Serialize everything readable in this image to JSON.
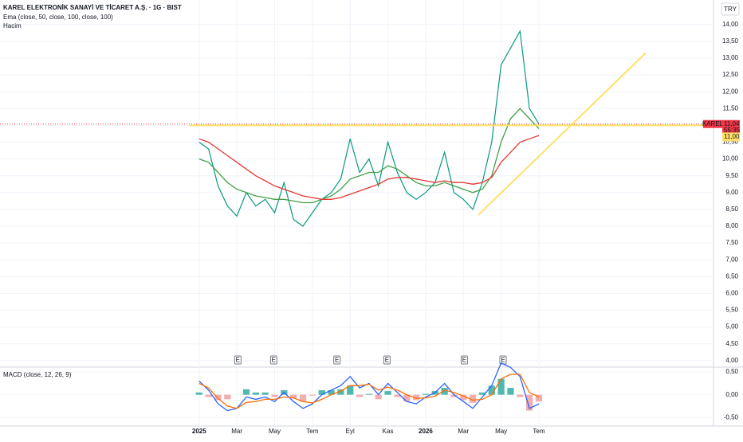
{
  "header": {
    "title": "KAREL ELEKTRONİK SANAYİ VE TİCARET A.Ş. · 1G · BIST",
    "indicator": "Ema (close, 50, close, 100, close, 100)",
    "volume_label": "Hacim",
    "currency": "TRY"
  },
  "chart_data": [
    {
      "type": "line",
      "xlim": [
        -21.1,
        54.5
      ],
      "ylim": [
        3.83,
        14.73
      ],
      "x": [
        0,
        1,
        2,
        3,
        4,
        5,
        6,
        7,
        8,
        9,
        10,
        11,
        12,
        13,
        14,
        15,
        16,
        17,
        18,
        19,
        20,
        21,
        22,
        23,
        24,
        25,
        26,
        27,
        28,
        29,
        30,
        31,
        32,
        33,
        34,
        35,
        36
      ],
      "xticks": [
        {
          "value": 0,
          "label": "2025"
        },
        {
          "value": 4,
          "label": "Mar"
        },
        {
          "value": 8,
          "label": "May"
        },
        {
          "value": 12,
          "label": "Tem"
        },
        {
          "value": 16,
          "label": "Eyl"
        },
        {
          "value": 20,
          "label": "Kas"
        },
        {
          "value": 24,
          "label": "2026"
        },
        {
          "value": 28,
          "label": "Mar"
        },
        {
          "value": 32,
          "label": "May"
        },
        {
          "value": 36,
          "label": "Tem"
        }
      ],
      "yticks": [
        {
          "value": 4,
          "label": "4,00"
        },
        {
          "value": 4.5,
          "label": "4,50"
        },
        {
          "value": 5,
          "label": "5,00"
        },
        {
          "value": 5.5,
          "label": "5,50"
        },
        {
          "value": 6,
          "label": "6,00"
        },
        {
          "value": 6.5,
          "label": "6,50"
        },
        {
          "value": 7,
          "label": "7,00"
        },
        {
          "value": 7.5,
          "label": "7,50"
        },
        {
          "value": 8,
          "label": "8,00"
        },
        {
          "value": 8.5,
          "label": "8,50"
        },
        {
          "value": 9,
          "label": "9,00"
        },
        {
          "value": 9.5,
          "label": "9,50"
        },
        {
          "value": 10,
          "label": "10,00"
        },
        {
          "value": 10.5,
          "label": "10,50"
        },
        {
          "value": 11,
          "label": "11,00"
        },
        {
          "value": 11.5,
          "label": "11,50"
        },
        {
          "value": 12,
          "label": "12,00"
        },
        {
          "value": 12.5,
          "label": "12,50"
        },
        {
          "value": 13,
          "label": "13,00"
        },
        {
          "value": 13.5,
          "label": "13,50"
        },
        {
          "value": 14,
          "label": "14,00"
        }
      ],
      "grid": true,
      "series": [
        {
          "color": "#089981",
          "values": [
            10.5,
            10.3,
            9.2,
            8.6,
            8.3,
            9.0,
            8.6,
            8.8,
            8.4,
            9.3,
            8.2,
            8.0,
            8.4,
            8.8,
            9.0,
            9.4,
            10.6,
            9.6,
            10.0,
            9.2,
            10.5,
            9.6,
            9.0,
            8.8,
            9.0,
            9.3,
            10.2,
            9.0,
            8.8,
            8.5,
            9.3,
            10.5,
            12.8,
            13.3,
            13.8,
            11.5,
            11.04
          ]
        },
        {
          "color": "#43a047",
          "values": [
            10.0,
            9.9,
            9.6,
            9.3,
            9.1,
            9.0,
            8.9,
            8.85,
            8.8,
            8.8,
            8.75,
            8.7,
            8.7,
            8.8,
            8.9,
            9.1,
            9.4,
            9.5,
            9.6,
            9.6,
            9.8,
            9.7,
            9.5,
            9.3,
            9.2,
            9.2,
            9.3,
            9.2,
            9.1,
            9.0,
            9.1,
            9.5,
            10.5,
            11.2,
            11.5,
            11.2,
            10.9
          ]
        },
        {
          "color": "#e53935",
          "values": [
            10.6,
            10.5,
            10.3,
            10.1,
            9.9,
            9.7,
            9.5,
            9.35,
            9.2,
            9.1,
            9.0,
            8.9,
            8.85,
            8.8,
            8.8,
            8.85,
            8.95,
            9.05,
            9.15,
            9.25,
            9.4,
            9.45,
            9.45,
            9.4,
            9.35,
            9.3,
            9.35,
            9.3,
            9.3,
            9.25,
            9.3,
            9.45,
            9.9,
            10.2,
            10.5,
            10.6,
            10.7
          ]
        }
      ],
      "lines": [
        {
          "color": "#ffe066",
          "x": [
            -1.0,
            54.5
          ],
          "y": [
            11.0,
            11.0
          ]
        },
        {
          "color": "#ffe066",
          "x": [
            29.6,
            47.3
          ],
          "y": [
            8.34,
            13.15
          ]
        }
      ],
      "events": [
        {
          "x": 4.1,
          "label": "E"
        },
        {
          "x": 7.9,
          "label": "E"
        },
        {
          "x": 14.6,
          "label": "E"
        },
        {
          "x": 19.9,
          "label": "E"
        },
        {
          "x": 28.1,
          "label": "E"
        },
        {
          "x": 32.2,
          "label": "E"
        }
      ],
      "symbol": "KAREL",
      "last_price": {
        "value": 11.04,
        "label": "11,04"
      },
      "countdown": "55:35",
      "level": {
        "value": 11.0,
        "label": "11,00"
      }
    },
    {
      "type": "line",
      "title": "MACD (close, 12, 26, 9)",
      "xlim": [
        -21.1,
        54.5
      ],
      "ylim": [
        -0.69,
        0.59
      ],
      "x": [
        0,
        1,
        2,
        3,
        4,
        5,
        6,
        7,
        8,
        9,
        10,
        11,
        12,
        13,
        14,
        15,
        16,
        17,
        18,
        19,
        20,
        21,
        22,
        23,
        24,
        25,
        26,
        27,
        28,
        29,
        30,
        31,
        32,
        33,
        34,
        35,
        36
      ],
      "yticks": [
        {
          "value": 0.5,
          "label": "0,50"
        },
        {
          "value": 0,
          "label": "0,00"
        },
        {
          "value": -0.5,
          "label": "-0,50"
        }
      ],
      "grid": true,
      "series": [
        {
          "style": "bar",
          "color": "#26a69a",
          "values": [
            0.05,
            -0.05,
            -0.12,
            -0.1,
            0.0,
            0.12,
            0.05,
            0.05,
            -0.05,
            0.1,
            -0.08,
            -0.15,
            -0.02,
            0.1,
            0.1,
            0.12,
            0.2,
            -0.05,
            0.02,
            -0.1,
            0.08,
            -0.05,
            -0.15,
            -0.12,
            0.02,
            0.08,
            0.15,
            -0.05,
            -0.12,
            -0.18,
            0.05,
            0.2,
            0.35,
            0.15,
            -0.05,
            -0.35,
            -0.15
          ]
        },
        {
          "color": "#2962ff",
          "values": [
            0.3,
            0.1,
            -0.2,
            -0.35,
            -0.3,
            -0.05,
            -0.1,
            -0.05,
            -0.15,
            0.05,
            -0.15,
            -0.3,
            -0.2,
            0.0,
            0.1,
            0.2,
            0.4,
            0.15,
            0.25,
            0.0,
            0.25,
            0.05,
            -0.15,
            -0.2,
            -0.05,
            0.05,
            0.25,
            0.0,
            -0.15,
            -0.3,
            -0.05,
            0.2,
            0.7,
            0.6,
            0.4,
            -0.3,
            -0.2
          ]
        },
        {
          "color": "#ff6d00",
          "values": [
            0.25,
            0.15,
            -0.08,
            -0.25,
            -0.3,
            -0.17,
            -0.15,
            -0.1,
            -0.1,
            -0.05,
            -0.07,
            -0.15,
            -0.18,
            -0.1,
            0.0,
            0.08,
            0.2,
            0.2,
            0.23,
            0.1,
            0.17,
            0.1,
            0.0,
            -0.08,
            -0.07,
            -0.03,
            0.1,
            0.05,
            -0.03,
            -0.12,
            -0.1,
            0.0,
            0.35,
            0.45,
            0.45,
            0.05,
            -0.05
          ]
        }
      ]
    }
  ]
}
